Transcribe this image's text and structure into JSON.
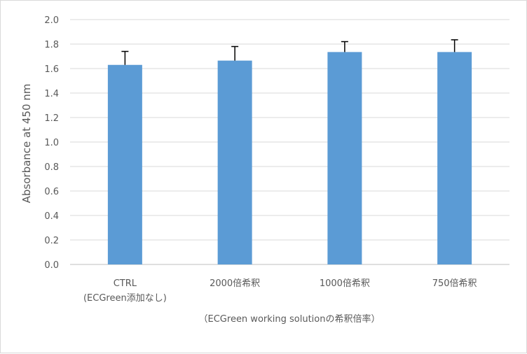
{
  "chart_data": {
    "type": "bar",
    "categories": [
      [
        "CTRL",
        "(ECGreen添加なし)"
      ],
      [
        "2000倍希釈"
      ],
      [
        "1000倍希釈"
      ],
      [
        "750倍希釈"
      ]
    ],
    "values": [
      1.63,
      1.665,
      1.735,
      1.735
    ],
    "errors": [
      0.11,
      0.115,
      0.085,
      0.1
    ],
    "ylabel": "Absorbance at 450 nm",
    "xlabel": "（ECGreen working solutionの希釈倍率）",
    "ylim": [
      0,
      2.0
    ],
    "yticks": [
      "0.0",
      "0.2",
      "0.4",
      "0.6",
      "0.8",
      "1.0",
      "1.2",
      "1.4",
      "1.6",
      "1.8",
      "2.0"
    ],
    "grid": true,
    "legend": "none",
    "colors": {
      "bar": "#5b9bd5",
      "grid": "#d9d9d9",
      "error": "#000000",
      "text": "#595959"
    }
  }
}
